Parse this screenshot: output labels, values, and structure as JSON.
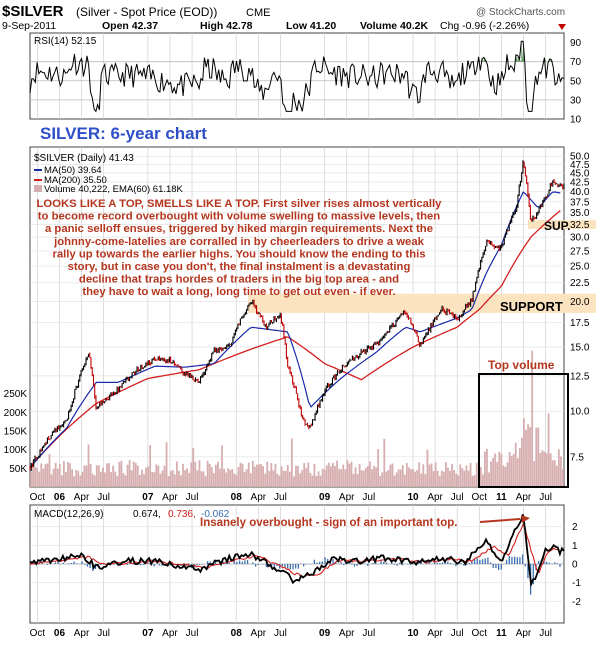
{
  "header": {
    "symbol": "$SILVER",
    "name": "(Silver - Spot Price (EOD))",
    "exchange": "CME",
    "date": "9-Sep-2011",
    "open": "Open 42.37",
    "high": "High 42.78",
    "low": "Low 41.20",
    "close": "Close 41.43",
    "volume": "Volume 40.2K",
    "change": "Chg -0.96 (-2.26%)",
    "watermark": "@ StockCharts.com"
  },
  "colors": {
    "price": "#000000",
    "down_bar": "#c00000",
    "ma50": "#1a2aa8",
    "ma200": "#d42020",
    "annotation": "#b5361e",
    "support_band": "#fbe3c0",
    "title_blue": "#2f4fc8",
    "rsi_fill": "#4d8a4d",
    "macd_signal": "#d42020",
    "histogram": "#3a6fb0",
    "volume": "#d7aeb0"
  },
  "chart_data": [
    {
      "type": "line",
      "panel": "rsi",
      "legend": "RSI(14) 52.15",
      "ylim": [
        10,
        100
      ],
      "yticks": [
        10,
        30,
        50,
        70,
        90
      ],
      "overbought": 70,
      "oversold": 30,
      "last": 52.15
    },
    {
      "type": "line",
      "panel": "price",
      "title": "SILVER: 6-year chart",
      "legend": [
        "$SILVER (Daily) 41.43",
        "MA(50) 39.64",
        "MA(200) 35.50",
        "Volume 40,222, EMA(60) 61.18K"
      ],
      "scale": "log",
      "ylim": [
        6.2,
        52
      ],
      "yticks": [
        "50.0",
        "47.5",
        "45.0",
        "42.5",
        "40.0",
        "37.5",
        "35.0",
        "32.5",
        "30.0",
        "27.5",
        "25.0",
        "22.5",
        "20.0",
        "17.5",
        "15.0",
        "12.5",
        "10.0",
        "7.5"
      ],
      "xticks": [
        "Oct",
        "06",
        "Apr",
        "Jul",
        "07",
        "Apr",
        "Jul",
        "08",
        "Apr",
        "Jul",
        "09",
        "Apr",
        "Jul",
        "10",
        "Apr",
        "Jul",
        "Oct",
        "11",
        "Apr",
        "Jul"
      ],
      "series": [
        {
          "name": "$SILVER (Daily)",
          "x": [
            "2005-09",
            "2005-12",
            "2006-02",
            "2006-05",
            "2006-06",
            "2006-09",
            "2006-12",
            "2007-02",
            "2007-04",
            "2007-06",
            "2007-08",
            "2007-10",
            "2007-12",
            "2008-03",
            "2008-05",
            "2008-07",
            "2008-08",
            "2008-10",
            "2008-11",
            "2009-01",
            "2009-03",
            "2009-06",
            "2009-08",
            "2009-12",
            "2010-02",
            "2010-05",
            "2010-07",
            "2010-09",
            "2010-11",
            "2011-01",
            "2011-03",
            "2011-04",
            "2011-05",
            "2011-06",
            "2011-07",
            "2011-08",
            "2011-09"
          ],
          "y": [
            7.0,
            8.7,
            9.5,
            14.5,
            10.2,
            11.5,
            13.2,
            13.9,
            13.8,
            12.7,
            12.1,
            14.6,
            15.0,
            20.2,
            17.0,
            18.5,
            13.3,
            9.5,
            9.0,
            11.4,
            12.9,
            14.5,
            15.2,
            18.8,
            15.2,
            19.1,
            17.8,
            20.3,
            29.0,
            28.0,
            36.0,
            48.7,
            33.0,
            35.2,
            38.8,
            43.0,
            41.43
          ]
        },
        {
          "name": "MA(50)",
          "x": [
            "2005-09",
            "2006-02",
            "2006-06",
            "2006-09",
            "2007-02",
            "2007-06",
            "2007-10",
            "2008-03",
            "2008-08",
            "2008-11",
            "2009-03",
            "2009-08",
            "2009-12",
            "2010-02",
            "2010-07",
            "2010-09",
            "2010-11",
            "2011-01",
            "2011-04",
            "2011-06",
            "2011-08",
            "2011-09"
          ],
          "y": [
            7.0,
            9.0,
            12.0,
            12.0,
            13.3,
            13.2,
            13.5,
            17.0,
            16.5,
            10.2,
            12.2,
            14.5,
            17.0,
            16.5,
            18.0,
            19.0,
            24.0,
            28.5,
            40.0,
            36.0,
            40.0,
            39.64
          ]
        },
        {
          "name": "MA(200)",
          "x": [
            "2005-09",
            "2006-06",
            "2007-01",
            "2007-08",
            "2008-03",
            "2008-08",
            "2009-01",
            "2009-06",
            "2010-01",
            "2010-07",
            "2010-10",
            "2011-01",
            "2011-05",
            "2011-09"
          ],
          "y": [
            7.0,
            10.5,
            12.3,
            13.0,
            14.8,
            16.0,
            13.5,
            12.2,
            15.0,
            17.0,
            19.0,
            22.0,
            30.0,
            35.5
          ]
        }
      ],
      "annotations": [
        "LOOKS LIKE A TOP, SMELLS LIKE A TOP. First silver rises almost vertically",
        "to become record overbought with volume swelling to massive levels, then",
        "a panic selloff ensues, triggered by hiked margin requirements. Next the",
        "johnny-come-latelies are corralled in by cheerleaders to drive a weak",
        "rally up towards the earlier highs. You should know the ending to this",
        "story, but in case you don't, the final instalment is a devastating",
        "decline that traps hordes of traders in the big top area - and",
        "they have to wait a long, long time to get out even - if ever."
      ],
      "labels": {
        "support": "SUPPORT",
        "sup": "SUP.",
        "top_volume": "Top volume"
      }
    },
    {
      "type": "bar",
      "panel": "volume",
      "yticks": [
        "250K",
        "200K",
        "150K",
        "100K",
        "50K"
      ],
      "ylim": [
        0,
        300000
      ]
    },
    {
      "type": "line",
      "panel": "macd",
      "legend": [
        "MACD(12,26,9)",
        "0.674,",
        "0.736,",
        "-0.062"
      ],
      "annotation": "Insanely overbought - sign of an important top.",
      "ylim": [
        -3,
        3
      ],
      "yticks": [
        "2",
        "1",
        "0",
        "-1",
        "-2"
      ],
      "xticks": [
        "Oct",
        "06",
        "Apr",
        "Jul",
        "07",
        "Apr",
        "Jul",
        "08",
        "Apr",
        "Jul",
        "09",
        "Apr",
        "Jul",
        "10",
        "Apr",
        "Jul",
        "Oct",
        "11",
        "Apr",
        "Jul"
      ],
      "series": [
        {
          "name": "MACD",
          "x": [
            "2005-09",
            "2006-04",
            "2006-06",
            "2006-09",
            "2007-01",
            "2007-08",
            "2007-12",
            "2008-03",
            "2008-09",
            "2008-11",
            "2009-02",
            "2009-06",
            "2009-09",
            "2010-01",
            "2010-05",
            "2010-08",
            "2010-11",
            "2011-01",
            "2011-04",
            "2011-05",
            "2011-06",
            "2011-07",
            "2011-08",
            "2011-09"
          ],
          "y": [
            0.05,
            0.5,
            -0.2,
            0.1,
            0.2,
            -0.3,
            0.3,
            0.55,
            -0.9,
            -0.6,
            0.3,
            0.1,
            0.35,
            0.1,
            0.3,
            0.1,
            1.2,
            0.2,
            2.7,
            -1.2,
            -0.3,
            0.7,
            1.0,
            0.674
          ]
        },
        {
          "name": "Signal",
          "x": [
            "2005-09",
            "2006-05",
            "2006-07",
            "2006-10",
            "2007-02",
            "2007-09",
            "2008-01",
            "2008-04",
            "2008-10",
            "2008-12",
            "2009-03",
            "2009-07",
            "2009-10",
            "2010-02",
            "2010-06",
            "2010-09",
            "2010-12",
            "2011-02",
            "2011-04",
            "2011-06",
            "2011-07",
            "2011-08",
            "2011-09"
          ],
          "y": [
            0.0,
            0.4,
            -0.05,
            0.05,
            0.15,
            -0.2,
            0.25,
            0.45,
            -0.7,
            -0.55,
            0.2,
            0.15,
            0.3,
            0.1,
            0.25,
            0.15,
            0.95,
            0.4,
            2.2,
            -0.6,
            0.4,
            0.85,
            0.736
          ]
        }
      ]
    }
  ]
}
